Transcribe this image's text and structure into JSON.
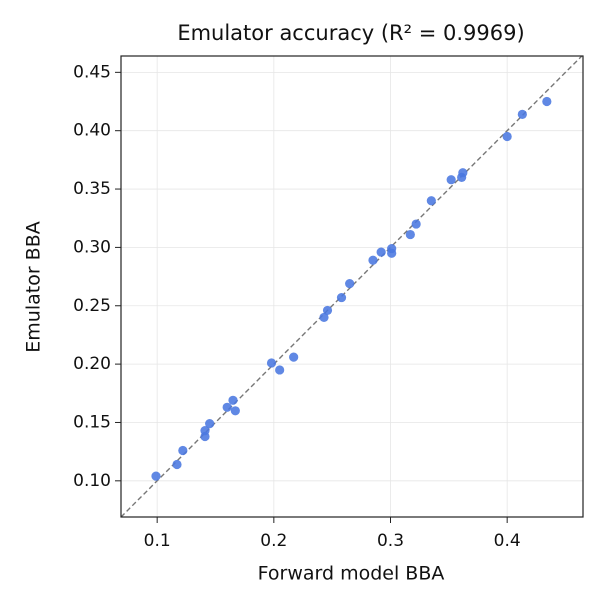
{
  "chart_data": {
    "type": "scatter",
    "title": "Emulator accuracy (R² = 0.9969)",
    "x_label": "Forward model BBA",
    "y_label": "Emulator BBA",
    "series": [
      {
        "color": "#4a78e0",
        "x": [
          0.099,
          0.117,
          0.122,
          0.141,
          0.141,
          0.145,
          0.16,
          0.165,
          0.167,
          0.198,
          0.205,
          0.217,
          0.243,
          0.246,
          0.258,
          0.265,
          0.285,
          0.292,
          0.301,
          0.301,
          0.317,
          0.322,
          0.335,
          0.352,
          0.361,
          0.362,
          0.4,
          0.413,
          0.434
        ],
        "values": [
          0.104,
          0.114,
          0.126,
          0.138,
          0.143,
          0.149,
          0.163,
          0.169,
          0.16,
          0.201,
          0.195,
          0.206,
          0.24,
          0.246,
          0.257,
          0.269,
          0.289,
          0.296,
          0.299,
          0.295,
          0.311,
          0.32,
          0.34,
          0.358,
          0.36,
          0.364,
          0.395,
          0.414,
          0.425
        ]
      }
    ],
    "xlim": [
      0.069,
      0.465
    ],
    "ylim": [
      0.069,
      0.464
    ],
    "xticks": [
      0.1,
      0.2,
      0.3,
      0.4
    ],
    "yticks": [
      {
        "value": 0.1,
        "label": "0.10"
      },
      0.15,
      {
        "value": 0.2,
        "label": "0.20"
      },
      0.25,
      {
        "value": 0.3,
        "label": "0.30"
      },
      0.35,
      {
        "value": 0.4,
        "label": "0.40"
      },
      0.45
    ],
    "grid": true,
    "identity_line": true
  }
}
